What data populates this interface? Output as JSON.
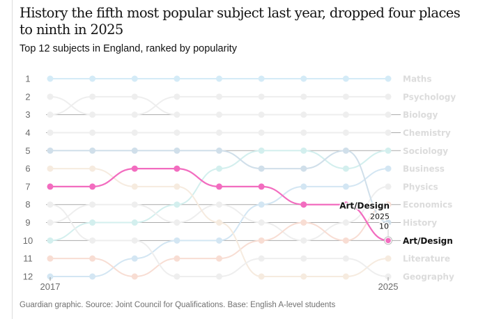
{
  "title": "History the fifth most popular subject last year, dropped four places to ninth in 2025",
  "subtitle": "Top 12 subjects in England, ranked by popularity",
  "footer": "Guardian graphic. Source: Joint Council for Qualifications. Base: English A-level students",
  "chart_data": {
    "type": "line",
    "subtype": "bump",
    "title": "History the fifth most popular subject last year, dropped four places to ninth in 2025",
    "subtitle": "Top 12 subjects in England, ranked by popularity",
    "x": [
      2017,
      2018,
      2019,
      2020,
      2021,
      2022,
      2023,
      2024,
      2025
    ],
    "x_tick_labels": [
      "2017",
      "2025"
    ],
    "y_ticks": [
      1,
      2,
      3,
      4,
      5,
      6,
      7,
      8,
      9,
      10,
      11,
      12
    ],
    "ylim": [
      1,
      12
    ],
    "y_inverted": true,
    "xlabel": "",
    "ylabel": "",
    "gridlines_at_ranks": [
      3,
      4,
      5,
      8,
      9,
      10
    ],
    "highlighted": "Art/Design",
    "annotation": {
      "label": "Art/Design",
      "year": "2025",
      "rank": "10"
    },
    "series": [
      {
        "name": "Maths",
        "color": "#d4ebf7",
        "values": [
          1,
          1,
          1,
          1,
          1,
          1,
          1,
          1,
          1
        ]
      },
      {
        "name": "Psychology",
        "color": "#eeeeee",
        "values": [
          2,
          3,
          3,
          2,
          2,
          2,
          2,
          2,
          2
        ]
      },
      {
        "name": "Biology",
        "color": "#eeeeee",
        "values": [
          3,
          2,
          2,
          3,
          3,
          3,
          3,
          3,
          3
        ]
      },
      {
        "name": "Chemistry",
        "color": "#eeeeee",
        "values": [
          4,
          4,
          4,
          4,
          4,
          4,
          4,
          4,
          4
        ]
      },
      {
        "name": "Sociology",
        "color": "#d3efee",
        "values": [
          10,
          9,
          9,
          8,
          6,
          5,
          5,
          6,
          5
        ]
      },
      {
        "name": "Business",
        "color": "#d3e6f3",
        "values": [
          12,
          12,
          11,
          10,
          10,
          8,
          7,
          7,
          6
        ]
      },
      {
        "name": "Physics",
        "color": "#eeeeee",
        "values": [
          9,
          8,
          8,
          9,
          8,
          9,
          10,
          9,
          7
        ]
      },
      {
        "name": "Economics",
        "color": "#f8ddd3",
        "values": [
          11,
          11,
          12,
          11,
          11,
          10,
          9,
          10,
          8
        ]
      },
      {
        "name": "History",
        "color": "#d0dfea",
        "values": [
          5,
          5,
          5,
          5,
          5,
          6,
          6,
          5,
          9
        ]
      },
      {
        "name": "Art/Design",
        "color": "#f26cbf",
        "values": [
          7,
          7,
          6,
          6,
          7,
          7,
          8,
          8,
          10
        ]
      },
      {
        "name": "Literature",
        "color": "#f6ebdf",
        "values": [
          6,
          6,
          7,
          7,
          9,
          12,
          12,
          12,
          11
        ]
      },
      {
        "name": "Geography",
        "color": "#eeeeee",
        "values": [
          8,
          10,
          10,
          12,
          12,
          11,
          11,
          11,
          12
        ]
      }
    ],
    "end_labels": [
      "Maths",
      "Psychology",
      "Biology",
      "Chemistry",
      "Sociology",
      "Business",
      "Physics",
      "Economics",
      "History",
      "Art/Design",
      "Literature",
      "Geography"
    ]
  }
}
